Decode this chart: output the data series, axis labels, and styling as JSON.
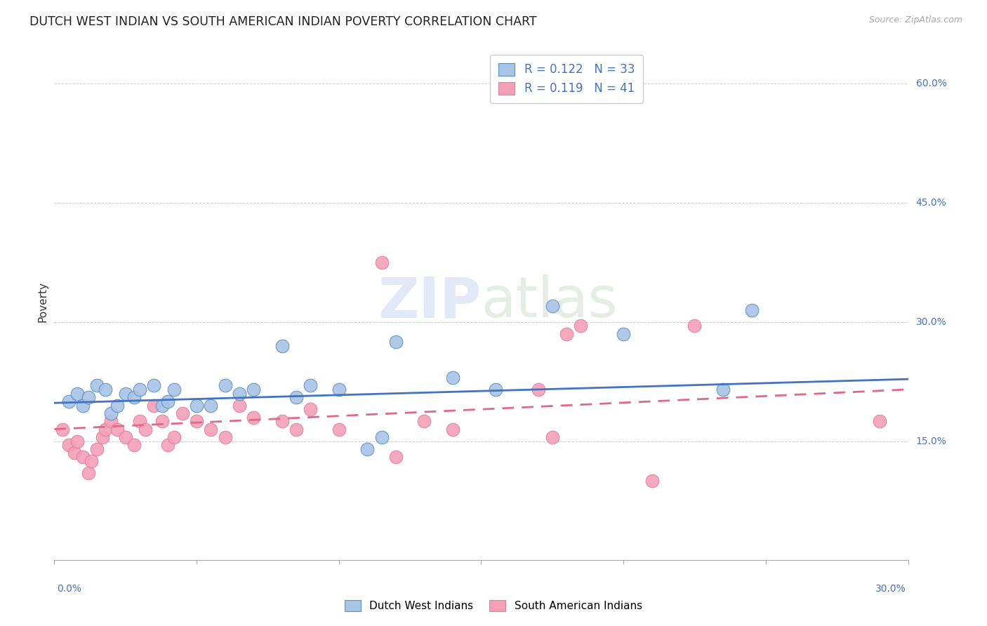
{
  "title": "DUTCH WEST INDIAN VS SOUTH AMERICAN INDIAN POVERTY CORRELATION CHART",
  "source": "Source: ZipAtlas.com",
  "ylabel": "Poverty",
  "ylabel_right_ticks": [
    "15.0%",
    "30.0%",
    "45.0%",
    "60.0%"
  ],
  "ylabel_right_vals": [
    0.15,
    0.3,
    0.45,
    0.6
  ],
  "xmin": 0.0,
  "xmax": 0.3,
  "ymin": 0.0,
  "ymax": 0.65,
  "legend1_r": "0.122",
  "legend1_n": "33",
  "legend2_r": "0.119",
  "legend2_n": "41",
  "color_blue": "#a8c4e6",
  "color_pink": "#f4a0b8",
  "watermark_zip": "ZIP",
  "watermark_atlas": "atlas",
  "legend_bottom_1": "Dutch West Indians",
  "legend_bottom_2": "South American Indians",
  "dutch_west_x": [
    0.005,
    0.008,
    0.01,
    0.012,
    0.015,
    0.018,
    0.02,
    0.022,
    0.025,
    0.028,
    0.03,
    0.035,
    0.038,
    0.04,
    0.042,
    0.05,
    0.055,
    0.06,
    0.065,
    0.07,
    0.08,
    0.085,
    0.09,
    0.1,
    0.11,
    0.115,
    0.12,
    0.14,
    0.155,
    0.175,
    0.2,
    0.235,
    0.245
  ],
  "dutch_west_y": [
    0.2,
    0.21,
    0.195,
    0.205,
    0.22,
    0.215,
    0.185,
    0.195,
    0.21,
    0.205,
    0.215,
    0.22,
    0.195,
    0.2,
    0.215,
    0.195,
    0.195,
    0.22,
    0.21,
    0.215,
    0.27,
    0.205,
    0.22,
    0.215,
    0.14,
    0.155,
    0.275,
    0.23,
    0.215,
    0.32,
    0.285,
    0.215,
    0.315
  ],
  "south_american_x": [
    0.003,
    0.005,
    0.007,
    0.008,
    0.01,
    0.012,
    0.013,
    0.015,
    0.017,
    0.018,
    0.02,
    0.022,
    0.025,
    0.028,
    0.03,
    0.032,
    0.035,
    0.038,
    0.04,
    0.042,
    0.045,
    0.05,
    0.055,
    0.06,
    0.065,
    0.07,
    0.08,
    0.085,
    0.09,
    0.1,
    0.115,
    0.12,
    0.13,
    0.14,
    0.17,
    0.175,
    0.18,
    0.185,
    0.21,
    0.225,
    0.29
  ],
  "south_american_y": [
    0.165,
    0.145,
    0.135,
    0.15,
    0.13,
    0.11,
    0.125,
    0.14,
    0.155,
    0.165,
    0.175,
    0.165,
    0.155,
    0.145,
    0.175,
    0.165,
    0.195,
    0.175,
    0.145,
    0.155,
    0.185,
    0.175,
    0.165,
    0.155,
    0.195,
    0.18,
    0.175,
    0.165,
    0.19,
    0.165,
    0.375,
    0.13,
    0.175,
    0.165,
    0.215,
    0.155,
    0.285,
    0.295,
    0.1,
    0.295,
    0.175
  ],
  "blue_line_x0": 0.0,
  "blue_line_x1": 0.3,
  "blue_line_y0": 0.198,
  "blue_line_y1": 0.228,
  "pink_line_x0": 0.0,
  "pink_line_x1": 0.3,
  "pink_line_y0": 0.165,
  "pink_line_y1": 0.215
}
